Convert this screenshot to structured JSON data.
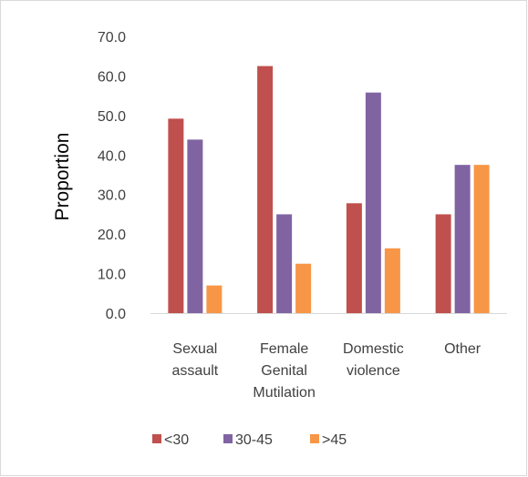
{
  "chart_data": {
    "type": "bar",
    "ylabel": "Proportion",
    "ylim": [
      0,
      70
    ],
    "yticks": [
      "0.0",
      "10.0",
      "20.0",
      "30.0",
      "40.0",
      "50.0",
      "60.0",
      "70.0"
    ],
    "grid": false,
    "legend_position": "bottom",
    "categories": [
      [
        "Sexual",
        "assault"
      ],
      [
        "Female",
        "Genital",
        "Mutilation"
      ],
      [
        "Domestic",
        "violence"
      ],
      [
        "Other"
      ]
    ],
    "series": [
      {
        "name": "<30",
        "color": "#c0504d",
        "values": [
          49.2,
          62.5,
          27.8,
          25.0
        ]
      },
      {
        "name": "30-45",
        "color": "#8064a2",
        "values": [
          43.9,
          25.0,
          55.8,
          37.5
        ]
      },
      {
        "name": ">45",
        "color": "#f79646",
        "values": [
          7.0,
          12.5,
          16.4,
          37.5
        ]
      }
    ]
  }
}
